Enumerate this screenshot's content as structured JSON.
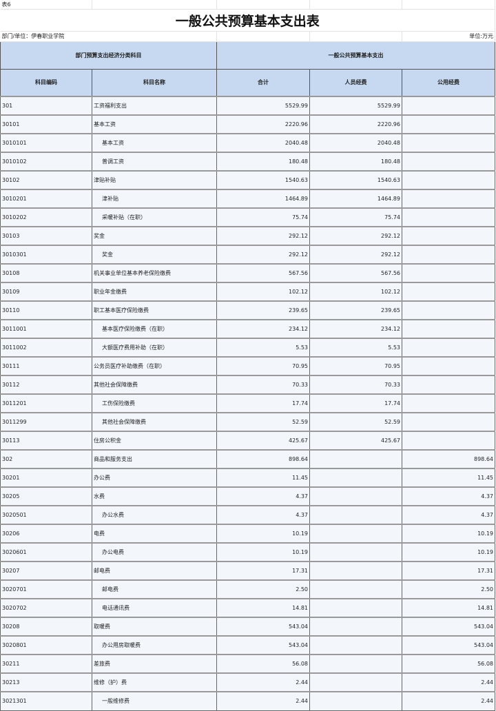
{
  "table_no": "表6",
  "title": "一般公共预算基本支出表",
  "department": "部门/单位：伊春职业学院",
  "unit": "单位:万元",
  "header": {
    "group_left": "部门预算支出经济分类科目",
    "group_right": "一般公共预算基本支出",
    "columns": [
      "科目编码",
      "科目名称",
      "合计",
      "人员经费",
      "公用经费"
    ]
  },
  "rows": [
    {
      "code": "301",
      "name": "工资福利支出",
      "indent": false,
      "total": "5529.99",
      "personnel": "5529.99",
      "public": ""
    },
    {
      "code": "30101",
      "name": "基本工资",
      "indent": false,
      "total": "2220.96",
      "personnel": "2220.96",
      "public": ""
    },
    {
      "code": "3010101",
      "name": "基本工资",
      "indent": true,
      "total": "2040.48",
      "personnel": "2040.48",
      "public": ""
    },
    {
      "code": "3010102",
      "name": "普调工资",
      "indent": true,
      "total": "180.48",
      "personnel": "180.48",
      "public": ""
    },
    {
      "code": "30102",
      "name": "津贴补贴",
      "indent": false,
      "total": "1540.63",
      "personnel": "1540.63",
      "public": ""
    },
    {
      "code": "3010201",
      "name": "津补贴",
      "indent": true,
      "total": "1464.89",
      "personnel": "1464.89",
      "public": ""
    },
    {
      "code": "3010202",
      "name": "采暖补贴（在职）",
      "indent": true,
      "total": "75.74",
      "personnel": "75.74",
      "public": ""
    },
    {
      "code": "30103",
      "name": "奖金",
      "indent": false,
      "total": "292.12",
      "personnel": "292.12",
      "public": ""
    },
    {
      "code": "3010301",
      "name": "奖金",
      "indent": true,
      "total": "292.12",
      "personnel": "292.12",
      "public": ""
    },
    {
      "code": "30108",
      "name": "机关事业单位基本养老保险缴费",
      "indent": false,
      "total": "567.56",
      "personnel": "567.56",
      "public": ""
    },
    {
      "code": "30109",
      "name": "职业年金缴费",
      "indent": false,
      "total": "102.12",
      "personnel": "102.12",
      "public": ""
    },
    {
      "code": "30110",
      "name": "职工基本医疗保险缴费",
      "indent": false,
      "total": "239.65",
      "personnel": "239.65",
      "public": ""
    },
    {
      "code": "3011001",
      "name": "基本医疗保险缴费（在职）",
      "indent": true,
      "total": "234.12",
      "personnel": "234.12",
      "public": ""
    },
    {
      "code": "3011002",
      "name": "大额医疗费用补助（在职）",
      "indent": true,
      "total": "5.53",
      "personnel": "5.53",
      "public": ""
    },
    {
      "code": "30111",
      "name": "公务员医疗补助缴费（在职）",
      "indent": false,
      "total": "70.95",
      "personnel": "70.95",
      "public": ""
    },
    {
      "code": "30112",
      "name": "其他社会保障缴费",
      "indent": false,
      "total": "70.33",
      "personnel": "70.33",
      "public": ""
    },
    {
      "code": "3011201",
      "name": "工伤保险缴费",
      "indent": true,
      "total": "17.74",
      "personnel": "17.74",
      "public": ""
    },
    {
      "code": "3011299",
      "name": "其他社会保障缴费",
      "indent": true,
      "total": "52.59",
      "personnel": "52.59",
      "public": ""
    },
    {
      "code": "30113",
      "name": "住房公积金",
      "indent": false,
      "total": "425.67",
      "personnel": "425.67",
      "public": ""
    },
    {
      "code": "302",
      "name": "商品和服务支出",
      "indent": false,
      "total": "898.64",
      "personnel": "",
      "public": "898.64"
    },
    {
      "code": "30201",
      "name": "办公费",
      "indent": false,
      "total": "11.45",
      "personnel": "",
      "public": "11.45"
    },
    {
      "code": "30205",
      "name": "水费",
      "indent": false,
      "total": "4.37",
      "personnel": "",
      "public": "4.37"
    },
    {
      "code": "3020501",
      "name": "办公水费",
      "indent": true,
      "total": "4.37",
      "personnel": "",
      "public": "4.37"
    },
    {
      "code": "30206",
      "name": "电费",
      "indent": false,
      "total": "10.19",
      "personnel": "",
      "public": "10.19"
    },
    {
      "code": "3020601",
      "name": "办公电费",
      "indent": true,
      "total": "10.19",
      "personnel": "",
      "public": "10.19"
    },
    {
      "code": "30207",
      "name": "邮电费",
      "indent": false,
      "total": "17.31",
      "personnel": "",
      "public": "17.31"
    },
    {
      "code": "3020701",
      "name": "邮电费",
      "indent": true,
      "total": "2.50",
      "personnel": "",
      "public": "2.50"
    },
    {
      "code": "3020702",
      "name": "电话通讯费",
      "indent": true,
      "total": "14.81",
      "personnel": "",
      "public": "14.81"
    },
    {
      "code": "30208",
      "name": "取暖费",
      "indent": false,
      "total": "543.04",
      "personnel": "",
      "public": "543.04"
    },
    {
      "code": "3020801",
      "name": "办公用房取暖费",
      "indent": true,
      "total": "543.04",
      "personnel": "",
      "public": "543.04"
    },
    {
      "code": "30211",
      "name": "差旅费",
      "indent": false,
      "total": "56.08",
      "personnel": "",
      "public": "56.08"
    },
    {
      "code": "30213",
      "name": "维修（护）费",
      "indent": false,
      "total": "2.44",
      "personnel": "",
      "public": "2.44"
    },
    {
      "code": "3021301",
      "name": "一般维修费",
      "indent": true,
      "total": "2.44",
      "personnel": "",
      "public": "2.44"
    }
  ]
}
